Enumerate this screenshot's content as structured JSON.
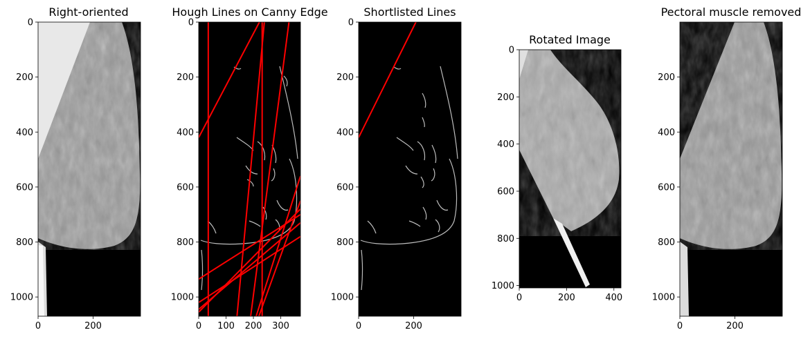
{
  "figure": {
    "panels": [
      {
        "id": "p1",
        "title": "Right-oriented",
        "image": "mammogram-right-oriented",
        "xticks": [
          0,
          200
        ],
        "yticks": [
          0,
          200,
          400,
          600,
          800,
          1000
        ],
        "xlim": [
          0,
          372
        ],
        "ylim": [
          1070,
          0
        ]
      },
      {
        "id": "p2",
        "title": "Hough Lines on Canny Edge",
        "image": "canny-edge-map",
        "xticks": [
          0,
          100,
          200,
          300
        ],
        "yticks": [
          0,
          200,
          400,
          600,
          800,
          1000
        ],
        "xlim": [
          0,
          372
        ],
        "ylim": [
          1070,
          0
        ],
        "line_color": "#ff0000",
        "lines": [
          [
            35,
            0,
            35,
            1070
          ],
          [
            232,
            0,
            232,
            1070
          ],
          [
            0,
            420,
            222,
            0
          ],
          [
            190,
            1070,
            330,
            0
          ],
          [
            140,
            1070,
            240,
            0
          ],
          [
            0,
            935,
            372,
            700
          ],
          [
            0,
            1020,
            372,
            780
          ],
          [
            0,
            1055,
            372,
            680
          ],
          [
            0,
            1045,
            372,
            730
          ],
          [
            210,
            1070,
            372,
            560
          ],
          [
            220,
            1070,
            372,
            650
          ]
        ]
      },
      {
        "id": "p3",
        "title": "Shortlisted Lines",
        "image": "canny-edge-map",
        "xticks": [
          0,
          200
        ],
        "yticks": [
          0,
          200,
          400,
          600,
          800,
          1000
        ],
        "xlim": [
          0,
          372
        ],
        "ylim": [
          1070,
          0
        ],
        "line_color": "#ff0000",
        "lines": [
          [
            0,
            420,
            208,
            0
          ]
        ]
      },
      {
        "id": "p4",
        "title": "Rotated Image",
        "image": "mammogram-rotated",
        "xticks": [
          0,
          200,
          400
        ],
        "yticks": [
          0,
          200,
          400,
          600,
          800,
          1000
        ],
        "xlim": [
          0,
          430
        ],
        "ylim": [
          1010,
          0
        ]
      },
      {
        "id": "p5",
        "title": "Pectoral muscle removed",
        "image": "mammogram-pectoral-removed",
        "xticks": [
          0,
          200
        ],
        "yticks": [
          200,
          400,
          600,
          800,
          1000
        ],
        "xlim": [
          0,
          372
        ],
        "ylim": [
          1070,
          0
        ]
      }
    ]
  },
  "chart_data": [
    {
      "type": "line",
      "title": "Hough Lines on Canny Edge",
      "series": [
        {
          "x": [
            35,
            35
          ],
          "y": [
            0,
            1070
          ]
        },
        {
          "x": [
            232,
            232
          ],
          "y": [
            0,
            1070
          ]
        },
        {
          "x": [
            0,
            222
          ],
          "y": [
            420,
            0
          ]
        },
        {
          "x": [
            190,
            330
          ],
          "y": [
            1070,
            0
          ]
        },
        {
          "x": [
            140,
            240
          ],
          "y": [
            1070,
            0
          ]
        },
        {
          "x": [
            0,
            372
          ],
          "y": [
            935,
            700
          ]
        },
        {
          "x": [
            0,
            372
          ],
          "y": [
            1020,
            780
          ]
        },
        {
          "x": [
            0,
            372
          ],
          "y": [
            1055,
            680
          ]
        },
        {
          "x": [
            0,
            372
          ],
          "y": [
            1045,
            730
          ]
        },
        {
          "x": [
            210,
            372
          ],
          "y": [
            1070,
            560
          ]
        },
        {
          "x": [
            220,
            372
          ],
          "y": [
            1070,
            650
          ]
        }
      ],
      "xlim": [
        0,
        372
      ],
      "ylim": [
        1070,
        0
      ],
      "grid": false
    },
    {
      "type": "line",
      "title": "Shortlisted Lines",
      "series": [
        {
          "x": [
            0,
            208
          ],
          "y": [
            420,
            0
          ]
        }
      ],
      "xlim": [
        0,
        372
      ],
      "ylim": [
        1070,
        0
      ],
      "grid": false
    }
  ]
}
